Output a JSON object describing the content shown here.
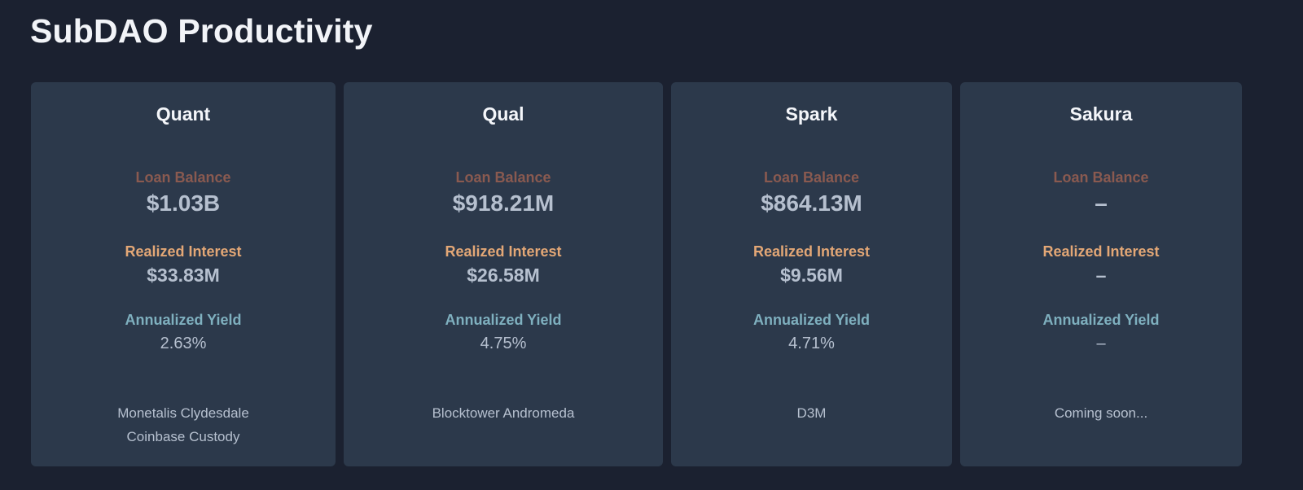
{
  "page": {
    "title": "SubDAO Productivity"
  },
  "labels": {
    "loan_balance": "Loan Balance",
    "realized_interest": "Realized Interest",
    "annualized_yield": "Annualized Yield"
  },
  "cards": [
    {
      "name": "Quant",
      "loan_balance": "$1.03B",
      "realized_interest": "$33.83M",
      "annualized_yield": "2.63%",
      "footer": [
        "Monetalis Clydesdale",
        "Coinbase Custody"
      ]
    },
    {
      "name": "Qual",
      "loan_balance": "$918.21M",
      "realized_interest": "$26.58M",
      "annualized_yield": "4.75%",
      "footer": [
        "Blocktower Andromeda"
      ]
    },
    {
      "name": "Spark",
      "loan_balance": "$864.13M",
      "realized_interest": "$9.56M",
      "annualized_yield": "4.71%",
      "footer": [
        "D3M"
      ]
    },
    {
      "name": "Sakura",
      "loan_balance": "–",
      "realized_interest": "–",
      "annualized_yield": "–",
      "footer": [
        "Coming soon..."
      ]
    }
  ],
  "colors": {
    "background": "#1b2130",
    "card": "#2c394b",
    "loan_label": "#8a5a50",
    "interest_label": "#e3a776",
    "yield_label": "#7fb0bf"
  }
}
